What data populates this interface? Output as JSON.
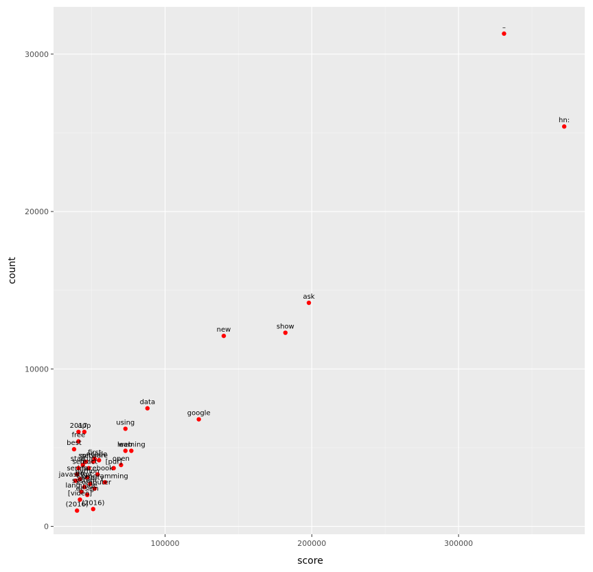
{
  "chart_data": {
    "type": "scatter",
    "xlabel": "score",
    "ylabel": "count",
    "xlim": [
      24000,
      386000
    ],
    "ylim": [
      -500,
      33000
    ],
    "x_ticks": [
      100000,
      200000,
      300000
    ],
    "x_tick_labels": [
      "100000",
      "200000",
      "300000"
    ],
    "y_ticks": [
      0,
      10000,
      20000,
      30000
    ],
    "y_tick_labels": [
      "0",
      "10000",
      "20000",
      "30000"
    ],
    "grid": true,
    "point_color": "#ff0000",
    "panel_color": "#ebebeb",
    "points": [
      {
        "label": "–",
        "x": 331000,
        "y": 31300
      },
      {
        "label": "hn:",
        "x": 372000,
        "y": 25400
      },
      {
        "label": "ask",
        "x": 198000,
        "y": 14200
      },
      {
        "label": "new",
        "x": 140000,
        "y": 12100
      },
      {
        "label": "show",
        "x": 182000,
        "y": 12300
      },
      {
        "label": "data",
        "x": 88000,
        "y": 7500
      },
      {
        "label": "google",
        "x": 123000,
        "y": 6800
      },
      {
        "label": "using",
        "x": 73000,
        "y": 6200
      },
      {
        "label": "learning",
        "x": 77000,
        "y": 4800
      },
      {
        "label": "web",
        "x": 73000,
        "y": 4800
      },
      {
        "label": "2017",
        "x": 41000,
        "y": 6000
      },
      {
        "label": "app",
        "x": 45000,
        "y": 6000
      },
      {
        "label": "free",
        "x": 41000,
        "y": 5400
      },
      {
        "label": "best",
        "x": 38000,
        "y": 4900
      },
      {
        "label": "first",
        "x": 52000,
        "y": 4300
      },
      {
        "label": "code",
        "x": 55000,
        "y": 4200
      },
      {
        "label": "open",
        "x": 70000,
        "y": 3900
      },
      {
        "label": "[pdf]",
        "x": 65000,
        "y": 3700
      },
      {
        "label": "software",
        "x": 51000,
        "y": 4100
      },
      {
        "label": "get",
        "x": 46000,
        "y": 4100
      },
      {
        "label": "startup",
        "x": 44000,
        "y": 3900
      },
      {
        "label": "react",
        "x": 48000,
        "y": 3700
      },
      {
        "label": "self",
        "x": 41000,
        "y": 3700
      },
      {
        "label": "facebook",
        "x": 54000,
        "y": 3300
      },
      {
        "label": "programming",
        "x": 59000,
        "y": 2800
      },
      {
        "label": "series",
        "x": 40000,
        "y": 3300
      },
      {
        "label": "javascript",
        "x": 39000,
        "y": 2900
      },
      {
        "label": "go",
        "x": 42000,
        "y": 3000
      },
      {
        "label": "python",
        "x": 47000,
        "y": 3100
      },
      {
        "label": "security",
        "x": 49000,
        "y": 2700
      },
      {
        "label": "system",
        "x": 45000,
        "y": 2500
      },
      {
        "label": "computer",
        "x": 52000,
        "y": 2400
      },
      {
        "label": "language",
        "x": 43000,
        "y": 2200
      },
      {
        "label": "design",
        "x": 47000,
        "y": 2000
      },
      {
        "label": "[video]",
        "x": 42000,
        "y": 1700
      },
      {
        "label": "(2016)",
        "x": 40000,
        "y": 1000
      },
      {
        "label": "(2016)",
        "x": 51000,
        "y": 1100
      }
    ]
  }
}
